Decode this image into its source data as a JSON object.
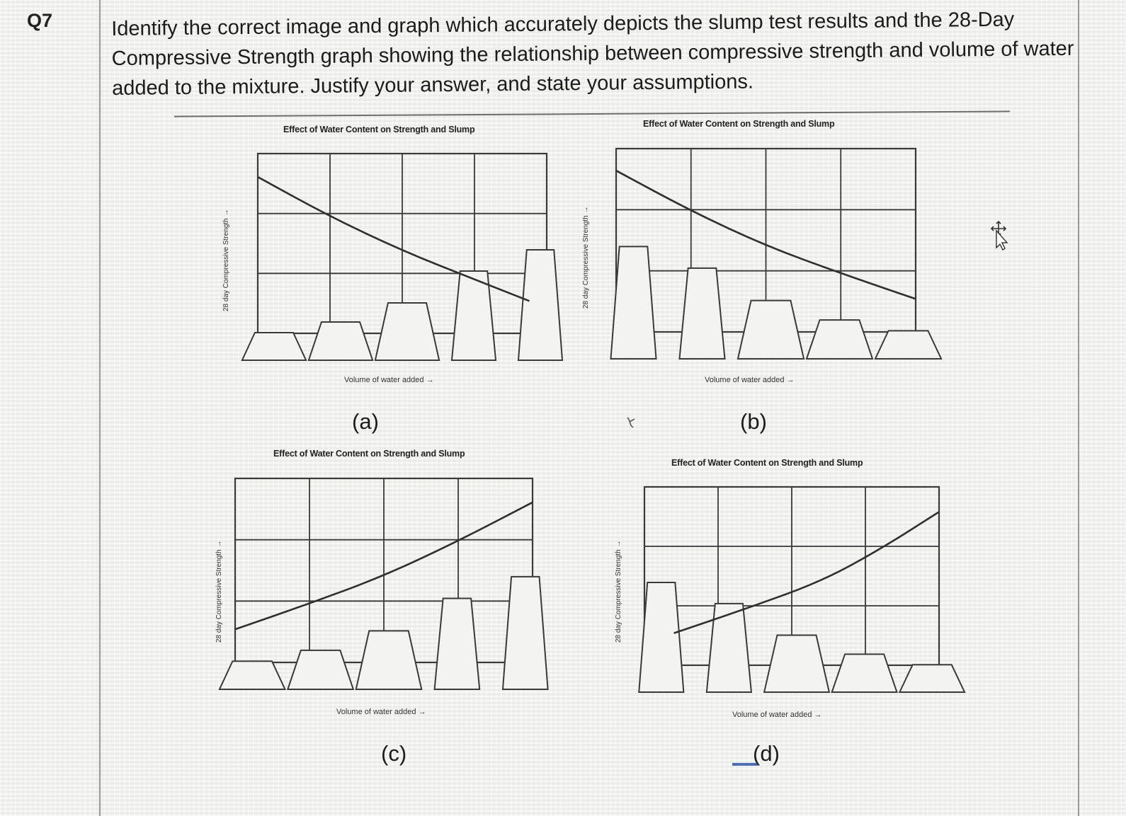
{
  "question": {
    "number": "Q7",
    "text": "Identify the correct image and graph which accurately depicts the slump test results and the 28-Day Compressive Strength graph showing the relationship between compressive strength and volume of water added to the mixture. Justify your answer, and state your assumptions."
  },
  "chart_data": [
    {
      "type": "line",
      "panel": "(a)",
      "title": "Effect of Water Content on Strength and Slump",
      "xlabel": "Volume of water added →",
      "ylabel": "28 day Compressive Strength →",
      "grid": true,
      "series": [
        {
          "values": [
            0.87,
            0.65,
            0.46,
            0.3,
            0.18
          ]
        }
      ],
      "x": [
        0,
        0.25,
        0.5,
        0.75,
        0.94
      ],
      "ylim": [
        0,
        1
      ],
      "slump_cones_relative_height": [
        0.13,
        0.18,
        0.27,
        0.42,
        0.52
      ]
    },
    {
      "type": "line",
      "panel": "(b)",
      "title": "Effect of Water Content on Strength and Slump",
      "xlabel": "Volume of water added →",
      "ylabel": "28 day Compressive Strength →",
      "grid": true,
      "series": [
        {
          "values": [
            0.88,
            0.66,
            0.47,
            0.32,
            0.18
          ]
        }
      ],
      "x": [
        0,
        0.25,
        0.5,
        0.75,
        1.0
      ],
      "ylim": [
        0,
        1
      ],
      "slump_cones_relative_height": [
        0.52,
        0.42,
        0.27,
        0.18,
        0.13
      ]
    },
    {
      "type": "line",
      "panel": "(c)",
      "title": "Effect of Water Content on Strength and Slump",
      "xlabel": "Volume of water added →",
      "ylabel": "28 day Compressive Strength →",
      "grid": true,
      "series": [
        {
          "values": [
            0.18,
            0.32,
            0.47,
            0.66,
            0.87
          ]
        }
      ],
      "x": [
        0,
        0.25,
        0.5,
        0.75,
        1.0
      ],
      "ylim": [
        0,
        1
      ],
      "slump_cones_relative_height": [
        0.13,
        0.18,
        0.27,
        0.42,
        0.52
      ]
    },
    {
      "type": "line",
      "panel": "(d)",
      "title": "Effect of Water Content on Strength and Slump",
      "xlabel": "Volume of water added →",
      "ylabel": "28 day Compressive Strength →",
      "grid": true,
      "series": [
        {
          "values": [
            0.18,
            0.32,
            0.47,
            0.65,
            0.86
          ]
        }
      ],
      "x": [
        0.1,
        0.35,
        0.6,
        0.8,
        1.0
      ],
      "ylim": [
        0,
        1
      ],
      "slump_cones_relative_height": [
        0.52,
        0.42,
        0.27,
        0.18,
        0.13
      ]
    }
  ]
}
